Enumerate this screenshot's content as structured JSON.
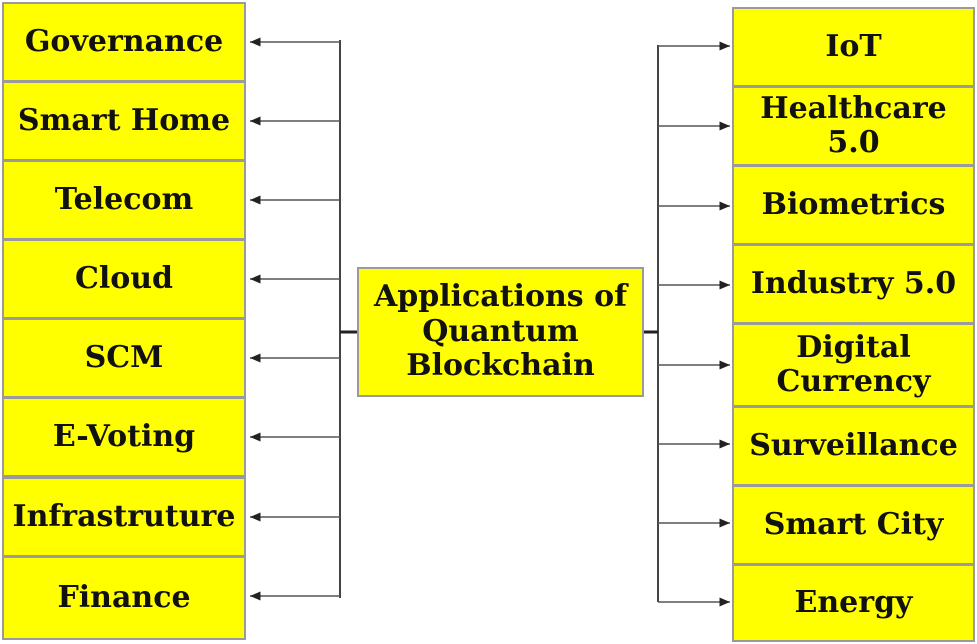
{
  "diagram": {
    "center": {
      "label": "Applications of Quantum Blockchain"
    },
    "left_items": [
      {
        "label": "Governance"
      },
      {
        "label": "Smart Home"
      },
      {
        "label": "Telecom"
      },
      {
        "label": "Cloud"
      },
      {
        "label": "SCM"
      },
      {
        "label": "E-Voting"
      },
      {
        "label": "Infrastruture"
      },
      {
        "label": "Finance"
      }
    ],
    "right_items": [
      {
        "label": "IoT"
      },
      {
        "label": "Healthcare 5.0"
      },
      {
        "label": "Biometrics"
      },
      {
        "label": "Industry 5.0"
      },
      {
        "label": "Digital Currency"
      },
      {
        "label": "Surveillance"
      },
      {
        "label": "Smart City"
      },
      {
        "label": "Energy"
      }
    ],
    "colors": {
      "box_fill": "#ffff00",
      "box_border": "#9a9a9a",
      "line": "#222222"
    }
  }
}
